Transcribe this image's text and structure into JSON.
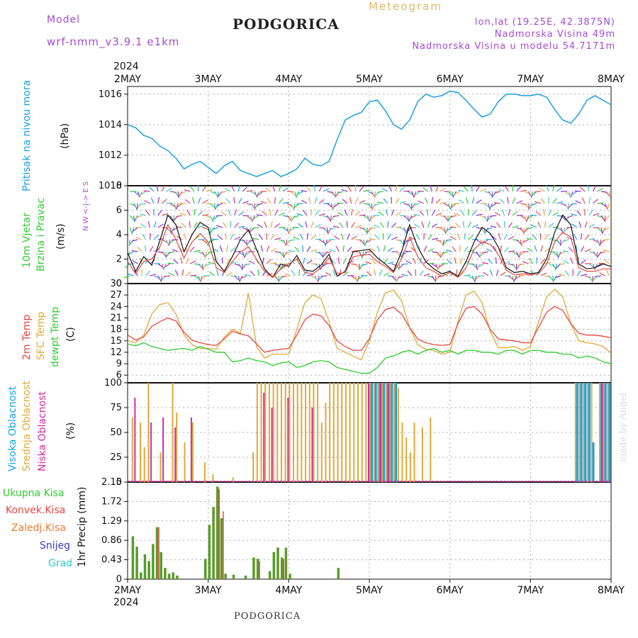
{
  "header": {
    "model_label": "Model",
    "model_name": "wrf-nmm_v3.9.1  e1km",
    "station": "PODGORICA",
    "meteogram": "Meteogram",
    "lonlat": "lon,lat (19.25E, 42.3875N)",
    "elev": "Nadmorska Visina 49m",
    "elev_model": "Nadmorska Visina u modelu 54.7171m"
  },
  "footer": {
    "station": "PODGORICA",
    "signature": "made by Angel"
  },
  "colors": {
    "pressure": "#1aa0e8",
    "temp2m": "#e8463e",
    "sfc": "#e2a838",
    "dew": "#2ecc2e",
    "high_cloud": "#1aa0e8",
    "mid_cloud": "#e2a838",
    "low_cloud": "#d62aa0",
    "total_precip": "#5a9a2a",
    "conv_precip": "#e8463e",
    "grid": "#aaaaaa"
  },
  "chart_data": [
    {
      "type": "line",
      "title": "",
      "ylabel_lines": [
        "Pritisak na nivou mora",
        "(hPa)"
      ],
      "ylim": [
        1010,
        1016.5
      ],
      "yticks": [
        1010,
        1012,
        1014,
        1016
      ],
      "year": "2024",
      "x_dates": [
        "2MAY",
        "3MAY",
        "4MAY",
        "5MAY",
        "6MAY",
        "7MAY",
        "8MAY"
      ],
      "x_day": [
        0.0,
        0.1,
        0.2,
        0.3,
        0.4,
        0.5,
        0.6,
        0.7,
        0.8,
        0.9,
        1.0,
        1.1,
        1.2,
        1.3,
        1.4,
        1.5,
        1.6,
        1.7,
        1.8,
        1.9,
        2.0,
        2.1,
        2.2,
        2.3,
        2.4,
        2.5,
        2.6,
        2.7,
        2.8,
        2.9,
        3.0,
        3.1,
        3.2,
        3.3,
        3.4,
        3.5,
        3.6,
        3.7,
        3.8,
        3.9,
        4.0,
        4.1,
        4.2,
        4.3,
        4.4,
        4.5,
        4.6,
        4.7,
        4.8,
        4.9,
        5.0,
        5.1,
        5.2,
        5.3,
        5.4,
        5.5,
        5.6,
        5.7,
        5.8,
        5.9,
        6.0
      ],
      "series": [
        {
          "values": [
            1014.0,
            1013.8,
            1013.3,
            1013.1,
            1012.6,
            1012.3,
            1011.8,
            1011.1,
            1011.4,
            1011.6,
            1011.2,
            1010.8,
            1011.3,
            1011.6,
            1011.0,
            1010.8,
            1010.6,
            1010.8,
            1011.0,
            1010.6,
            1010.8,
            1011.1,
            1011.8,
            1011.4,
            1011.3,
            1011.6,
            1013.0,
            1014.3,
            1014.6,
            1014.8,
            1015.5,
            1015.6,
            1014.9,
            1014.0,
            1013.7,
            1014.3,
            1015.5,
            1016.0,
            1015.8,
            1015.9,
            1016.2,
            1016.1,
            1015.6,
            1015.0,
            1014.5,
            1014.7,
            1015.5,
            1016.0,
            1016.0,
            1015.9,
            1015.9,
            1016.0,
            1015.8,
            1015.0,
            1014.3,
            1014.1,
            1014.7,
            1015.6,
            1015.9,
            1015.6,
            1015.3
          ]
        }
      ]
    },
    {
      "type": "line",
      "title": "",
      "ylabel_lines": [
        "10m Vjetar",
        "Brzina i Pravac",
        "(m/s)"
      ],
      "direction_legend": "N  W <-|-> E  S",
      "ylim": [
        0,
        8
      ],
      "yticks": [
        0,
        2,
        4,
        6,
        8
      ],
      "x_day": [
        0.0,
        0.1,
        0.2,
        0.3,
        0.4,
        0.5,
        0.6,
        0.7,
        0.8,
        0.9,
        1.0,
        1.1,
        1.2,
        1.3,
        1.4,
        1.5,
        1.6,
        1.7,
        1.8,
        1.9,
        2.0,
        2.1,
        2.2,
        2.3,
        2.4,
        2.5,
        2.6,
        2.7,
        2.8,
        2.9,
        3.0,
        3.1,
        3.2,
        3.3,
        3.4,
        3.5,
        3.6,
        3.7,
        3.8,
        3.9,
        4.0,
        4.1,
        4.2,
        4.3,
        4.4,
        4.5,
        4.6,
        4.7,
        4.8,
        4.9,
        5.0,
        5.1,
        5.2,
        5.3,
        5.4,
        5.5,
        5.6,
        5.7,
        5.8,
        5.9,
        6.0
      ],
      "series": [
        {
          "values": [
            2.5,
            1.0,
            2.2,
            1.5,
            3.5,
            5.6,
            4.8,
            2.6,
            4.0,
            5.0,
            4.6,
            1.8,
            1.0,
            2.2,
            3.6,
            4.4,
            2.8,
            1.2,
            0.5,
            1.6,
            1.4,
            2.3,
            1.1,
            1.0,
            1.5,
            2.4,
            0.6,
            1.0,
            2.6,
            2.7,
            2.8,
            2.1,
            1.6,
            1.0,
            2.6,
            4.8,
            3.0,
            1.8,
            1.2,
            0.8,
            1.0,
            0.6,
            1.8,
            3.4,
            4.6,
            4.1,
            3.0,
            1.3,
            0.9,
            1.0,
            0.8,
            0.9,
            2.0,
            4.2,
            5.6,
            4.8,
            1.6,
            1.2,
            1.3,
            1.6,
            1.4
          ]
        },
        {
          "values": [
            1.8,
            0.8,
            1.8,
            2.0,
            3.0,
            4.8,
            3.6,
            2.1,
            3.4,
            4.1,
            3.4,
            1.3,
            0.9,
            1.8,
            2.6,
            3.0,
            2.0,
            1.0,
            0.5,
            1.2,
            1.6,
            2.0,
            0.9,
            0.8,
            1.3,
            2.1,
            0.8,
            0.9,
            2.2,
            2.3,
            2.4,
            1.8,
            1.4,
            0.9,
            2.0,
            3.8,
            2.2,
            1.3,
            1.0,
            0.6,
            0.9,
            0.5,
            1.3,
            2.8,
            3.4,
            3.2,
            2.4,
            1.1,
            0.7,
            0.8,
            0.7,
            0.8,
            1.6,
            3.4,
            4.2,
            3.8,
            1.3,
            1.0,
            1.0,
            1.2,
            1.2
          ]
        }
      ]
    },
    {
      "type": "line",
      "title": "",
      "ylabel_lines": [
        "2m Temp",
        "SFC Temp",
        "dewpt Temp",
        "(C)"
      ],
      "ylim": [
        4,
        30
      ],
      "yticks": [
        6,
        9,
        12,
        15,
        18,
        21,
        24,
        27,
        30
      ],
      "x_day": [
        0.0,
        0.1,
        0.2,
        0.3,
        0.4,
        0.5,
        0.6,
        0.7,
        0.8,
        0.9,
        1.0,
        1.1,
        1.2,
        1.3,
        1.4,
        1.5,
        1.6,
        1.7,
        1.8,
        1.9,
        2.0,
        2.1,
        2.2,
        2.3,
        2.4,
        2.5,
        2.6,
        2.7,
        2.8,
        2.9,
        3.0,
        3.1,
        3.2,
        3.3,
        3.4,
        3.5,
        3.6,
        3.7,
        3.8,
        3.9,
        4.0,
        4.1,
        4.2,
        4.3,
        4.4,
        4.5,
        4.6,
        4.7,
        4.8,
        4.9,
        5.0,
        5.1,
        5.2,
        5.3,
        5.4,
        5.5,
        5.6,
        5.7,
        5.8,
        5.9,
        6.0
      ],
      "series": [
        {
          "name": "2m Temp",
          "values": [
            16.5,
            15.2,
            16.0,
            18.8,
            20.0,
            21.0,
            20.2,
            17.2,
            15.2,
            14.5,
            14.0,
            13.8,
            15.5,
            17.5,
            16.8,
            16.3,
            14.2,
            12.0,
            12.5,
            12.8,
            13.0,
            16.5,
            20.5,
            22.0,
            21.5,
            19.0,
            15.0,
            13.5,
            12.5,
            12.5,
            15.5,
            20.5,
            23.2,
            23.8,
            22.0,
            18.5,
            15.5,
            14.5,
            14.0,
            13.8,
            14.0,
            19.5,
            23.5,
            24.0,
            22.0,
            18.0,
            15.5,
            15.2,
            15.0,
            14.5,
            14.5,
            18.5,
            22.5,
            24.0,
            23.0,
            19.5,
            17.0,
            16.5,
            16.5,
            16.2,
            15.8
          ]
        },
        {
          "name": "SFC Temp",
          "values": [
            15.0,
            14.5,
            16.5,
            22.0,
            24.5,
            25.0,
            22.0,
            16.5,
            14.0,
            13.0,
            13.0,
            12.8,
            16.0,
            18.0,
            17.0,
            27.5,
            13.5,
            10.5,
            11.5,
            11.5,
            11.5,
            18.0,
            25.0,
            27.0,
            26.0,
            20.0,
            13.0,
            12.0,
            11.0,
            10.0,
            15.0,
            22.5,
            27.5,
            28.3,
            25.5,
            18.5,
            14.0,
            12.8,
            12.5,
            11.5,
            12.0,
            20.0,
            27.0,
            28.0,
            25.0,
            17.5,
            13.2,
            13.2,
            13.5,
            12.5,
            13.5,
            20.0,
            26.5,
            28.5,
            26.5,
            19.5,
            15.0,
            14.5,
            14.2,
            13.5,
            11.8
          ]
        },
        {
          "name": "dewpt Temp",
          "values": [
            14.2,
            13.7,
            14.5,
            13.5,
            13.0,
            12.5,
            12.8,
            13.0,
            12.5,
            13.5,
            12.8,
            12.0,
            12.0,
            9.5,
            9.8,
            10.5,
            9.8,
            9.5,
            8.5,
            9.2,
            9.5,
            8.0,
            8.5,
            9.5,
            9.8,
            9.5,
            8.0,
            7.5,
            7.0,
            6.5,
            6.5,
            8.0,
            10.5,
            11.0,
            12.0,
            12.5,
            11.5,
            12.5,
            13.0,
            12.0,
            12.5,
            11.5,
            12.5,
            12.5,
            12.0,
            12.0,
            11.5,
            12.5,
            12.5,
            11.5,
            12.5,
            12.5,
            12.0,
            12.0,
            11.5,
            11.5,
            10.5,
            11.0,
            10.5,
            9.5,
            9.0
          ]
        }
      ]
    },
    {
      "type": "bar",
      "title": "",
      "ylabel_lines": [
        "Visoka Oblacnost",
        "Srednja Oblacnost",
        "Niska Oblacnost",
        "(%)"
      ],
      "ylim": [
        0,
        100
      ],
      "yticks": [
        0,
        25,
        50,
        75,
        100
      ],
      "bars": {
        "mid": [
          [
            0.05,
            65
          ],
          [
            0.15,
            60
          ],
          [
            0.2,
            35
          ],
          [
            0.25,
            100
          ],
          [
            0.4,
            30
          ],
          [
            0.55,
            100
          ],
          [
            0.6,
            70
          ],
          [
            0.7,
            40
          ],
          [
            0.8,
            60
          ],
          [
            0.95,
            20
          ],
          [
            1.05,
            8
          ],
          [
            1.3,
            5
          ],
          [
            1.55,
            30
          ],
          [
            1.6,
            100
          ],
          [
            1.65,
            100
          ],
          [
            1.7,
            100
          ],
          [
            1.75,
            100
          ],
          [
            1.8,
            100
          ],
          [
            1.85,
            100
          ],
          [
            1.9,
            100
          ],
          [
            1.95,
            100
          ],
          [
            2.0,
            100
          ],
          [
            2.05,
            100
          ],
          [
            2.1,
            100
          ],
          [
            2.15,
            100
          ],
          [
            2.2,
            100
          ],
          [
            2.25,
            100
          ],
          [
            2.3,
            100
          ],
          [
            2.35,
            100
          ],
          [
            2.4,
            60
          ],
          [
            2.45,
            80
          ],
          [
            2.5,
            100
          ],
          [
            2.55,
            100
          ],
          [
            2.6,
            100
          ],
          [
            2.65,
            100
          ],
          [
            2.7,
            100
          ],
          [
            2.75,
            100
          ],
          [
            2.8,
            100
          ],
          [
            2.85,
            100
          ],
          [
            2.9,
            100
          ],
          [
            2.95,
            100
          ],
          [
            3.0,
            100
          ],
          [
            3.05,
            100
          ],
          [
            3.1,
            100
          ],
          [
            3.15,
            100
          ],
          [
            3.2,
            100
          ],
          [
            3.25,
            100
          ],
          [
            3.3,
            100
          ],
          [
            3.35,
            95
          ],
          [
            3.4,
            60
          ],
          [
            3.45,
            45
          ],
          [
            3.5,
            30
          ],
          [
            3.55,
            60
          ],
          [
            3.65,
            55
          ],
          [
            3.75,
            65
          ],
          [
            5.55,
            100
          ],
          [
            5.6,
            100
          ],
          [
            5.65,
            100
          ],
          [
            5.7,
            100
          ],
          [
            5.75,
            100
          ],
          [
            5.85,
            100
          ],
          [
            5.9,
            100
          ],
          [
            5.95,
            100
          ]
        ],
        "high": [
          [
            3.0,
            100
          ],
          [
            3.05,
            100
          ],
          [
            3.1,
            100
          ],
          [
            3.15,
            100
          ],
          [
            3.2,
            100
          ],
          [
            3.25,
            100
          ],
          [
            3.3,
            100
          ],
          [
            5.55,
            100
          ],
          [
            5.6,
            100
          ],
          [
            5.65,
            100
          ],
          [
            5.7,
            100
          ],
          [
            5.75,
            40
          ],
          [
            5.85,
            100
          ],
          [
            5.9,
            100
          ],
          [
            5.95,
            100
          ]
        ],
        "low": [
          [
            0.1,
            85
          ],
          [
            0.3,
            60
          ],
          [
            0.45,
            65
          ],
          [
            0.6,
            55
          ],
          [
            0.8,
            65
          ],
          [
            1.7,
            90
          ],
          [
            1.8,
            75
          ],
          [
            2.0,
            85
          ],
          [
            2.3,
            75
          ],
          [
            3.0,
            100
          ],
          [
            3.15,
            100
          ],
          [
            3.25,
            100
          ],
          [
            5.9,
            100
          ]
        ]
      }
    },
    {
      "type": "bar",
      "title": "",
      "ylabel_lines": [
        "1hr Precip (mm)"
      ],
      "legend": [
        "Ukupna Kisa",
        "Konvek.Kisa",
        "Zaledj.Kisa",
        "Snijeg",
        "Grad"
      ],
      "legend_colors": [
        "#2ecc2e",
        "#e8463e",
        "#e87a2e",
        "#3a3ad6",
        "#2ecccc"
      ],
      "ylim": [
        0,
        2.15
      ],
      "yticks": [
        0,
        0.43,
        0.86,
        1.29,
        1.72,
        2.15
      ],
      "ytick_labels": [
        "0",
        "0.43",
        "0.86",
        "1.29",
        "1.72",
        "2.15"
      ],
      "bars": {
        "total": [
          [
            0.05,
            0.95
          ],
          [
            0.1,
            0.72
          ],
          [
            0.15,
            0.15
          ],
          [
            0.2,
            0.55
          ],
          [
            0.25,
            0.4
          ],
          [
            0.3,
            0.78
          ],
          [
            0.35,
            1.15
          ],
          [
            0.4,
            0.6
          ],
          [
            0.45,
            0.25
          ],
          [
            0.5,
            0.12
          ],
          [
            0.55,
            0.15
          ],
          [
            0.6,
            0.08
          ],
          [
            0.95,
            0.45
          ],
          [
            1.0,
            1.2
          ],
          [
            1.05,
            1.6
          ],
          [
            1.1,
            2.05
          ],
          [
            1.15,
            1.35
          ],
          [
            1.2,
            0.12
          ],
          [
            1.3,
            0.1
          ],
          [
            1.45,
            0.08
          ],
          [
            1.55,
            0.48
          ],
          [
            1.6,
            0.45
          ],
          [
            1.75,
            0.18
          ],
          [
            1.8,
            0.6
          ],
          [
            1.85,
            0.7
          ],
          [
            1.9,
            0.48
          ],
          [
            1.95,
            0.7
          ],
          [
            2.0,
            0.12
          ],
          [
            2.6,
            0.25
          ]
        ],
        "conv": [
          [
            0.35,
            1.15
          ],
          [
            1.1,
            2.0
          ],
          [
            1.15,
            1.5
          ],
          [
            1.6,
            0.4
          ],
          [
            1.9,
            0.45
          ]
        ]
      }
    }
  ]
}
